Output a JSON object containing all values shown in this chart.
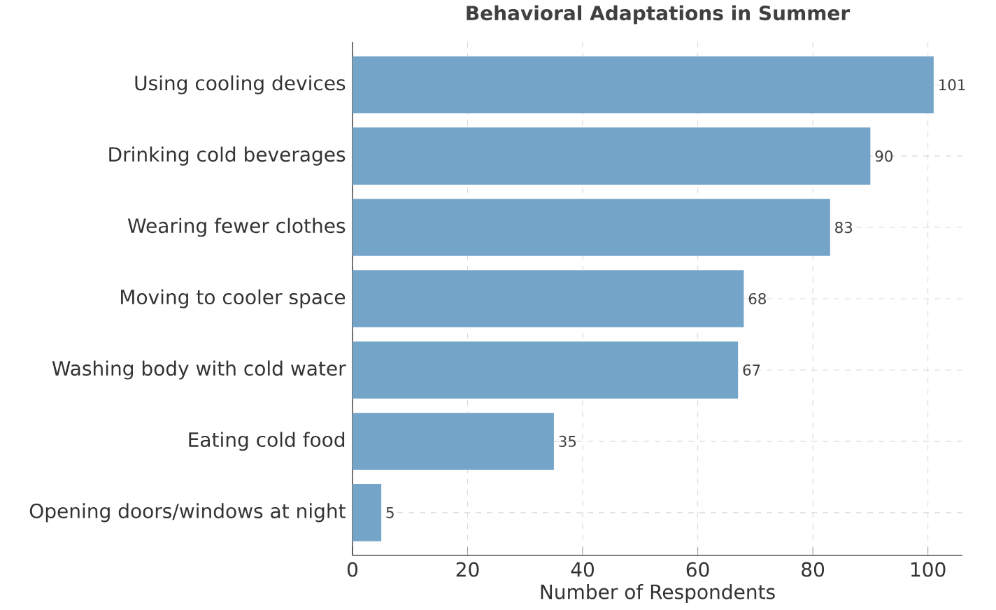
{
  "chart_data": {
    "type": "bar",
    "orientation": "horizontal",
    "title": "Behavioral Adaptations in Summer",
    "xlabel": "Number of Respondents",
    "categories": [
      "Using cooling devices",
      "Drinking cold beverages",
      "Wearing fewer clothes",
      "Moving to cooler space",
      "Washing body with cold water",
      "Eating cold food",
      "Opening doors/windows at night"
    ],
    "values": [
      101,
      90,
      83,
      68,
      67,
      35,
      5
    ],
    "color": "#74a5c9",
    "xlim": [
      0,
      106
    ],
    "xticks": [
      0,
      20,
      40,
      60,
      80,
      100
    ],
    "grid": true,
    "data_labels": true
  }
}
